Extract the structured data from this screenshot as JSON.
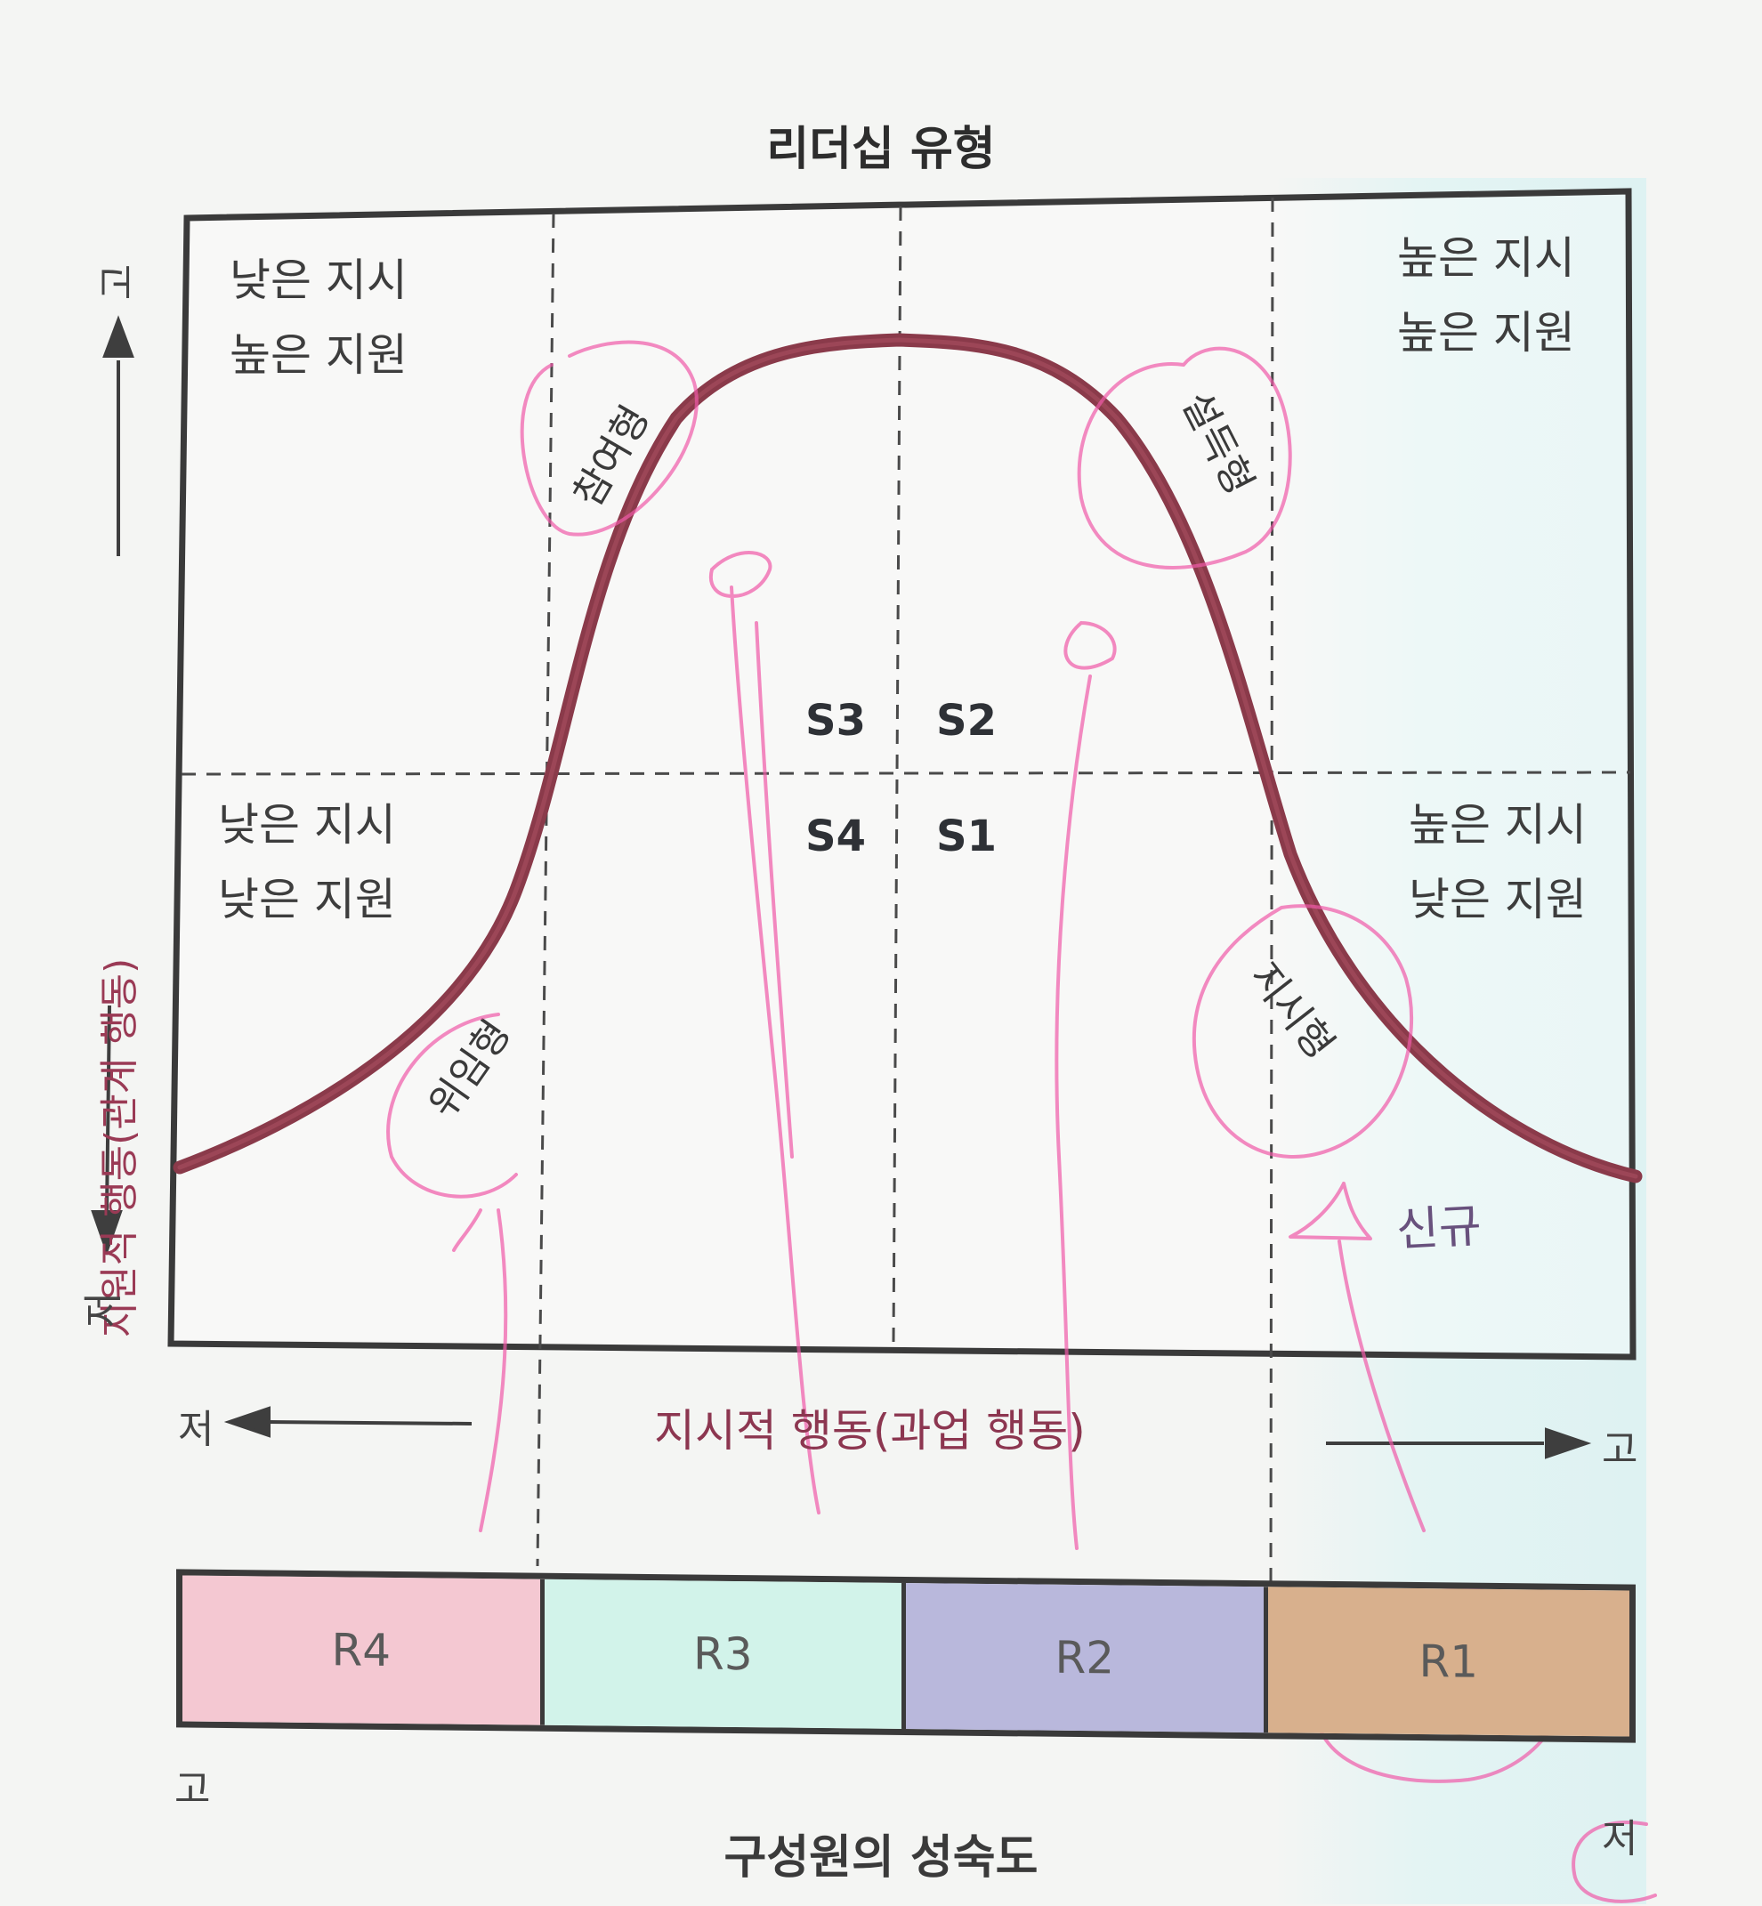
{
  "title": "리더십 유형",
  "quadrants": {
    "top_left": [
      "낮은 지시",
      "높은 지원"
    ],
    "top_right": [
      "높은 지시",
      "높은 지원"
    ],
    "bottom_left": [
      "낮은 지시",
      "낮은 지원"
    ],
    "bottom_right": [
      "높은 지시",
      "낮은 지원"
    ]
  },
  "styles": {
    "S1": "S1",
    "S2": "S2",
    "S3": "S3",
    "S4": "S4",
    "participating": "참여형",
    "selling": "설득형",
    "delegating": "위임형",
    "telling": "지시형"
  },
  "y_axis": {
    "title": "지원적 행동(관계 행동)",
    "high": "고",
    "low": "저"
  },
  "x_axis": {
    "title": "지시적 행동(과업 행동)",
    "low": "저",
    "high": "고"
  },
  "readiness": {
    "cells": [
      {
        "label": "R4",
        "color": "#f4c8d2"
      },
      {
        "label": "R3",
        "color": "#d2f3ea"
      },
      {
        "label": "R2",
        "color": "#b9b8dc"
      },
      {
        "label": "R1",
        "color": "#d8b08d"
      }
    ],
    "high": "고",
    "low": "저",
    "title": "구성원의 성숙도"
  },
  "annotation": "신규",
  "colors": {
    "curve": "#8a3a4a",
    "annotation": "#f05aa8",
    "frame": "#3a3a3a"
  }
}
